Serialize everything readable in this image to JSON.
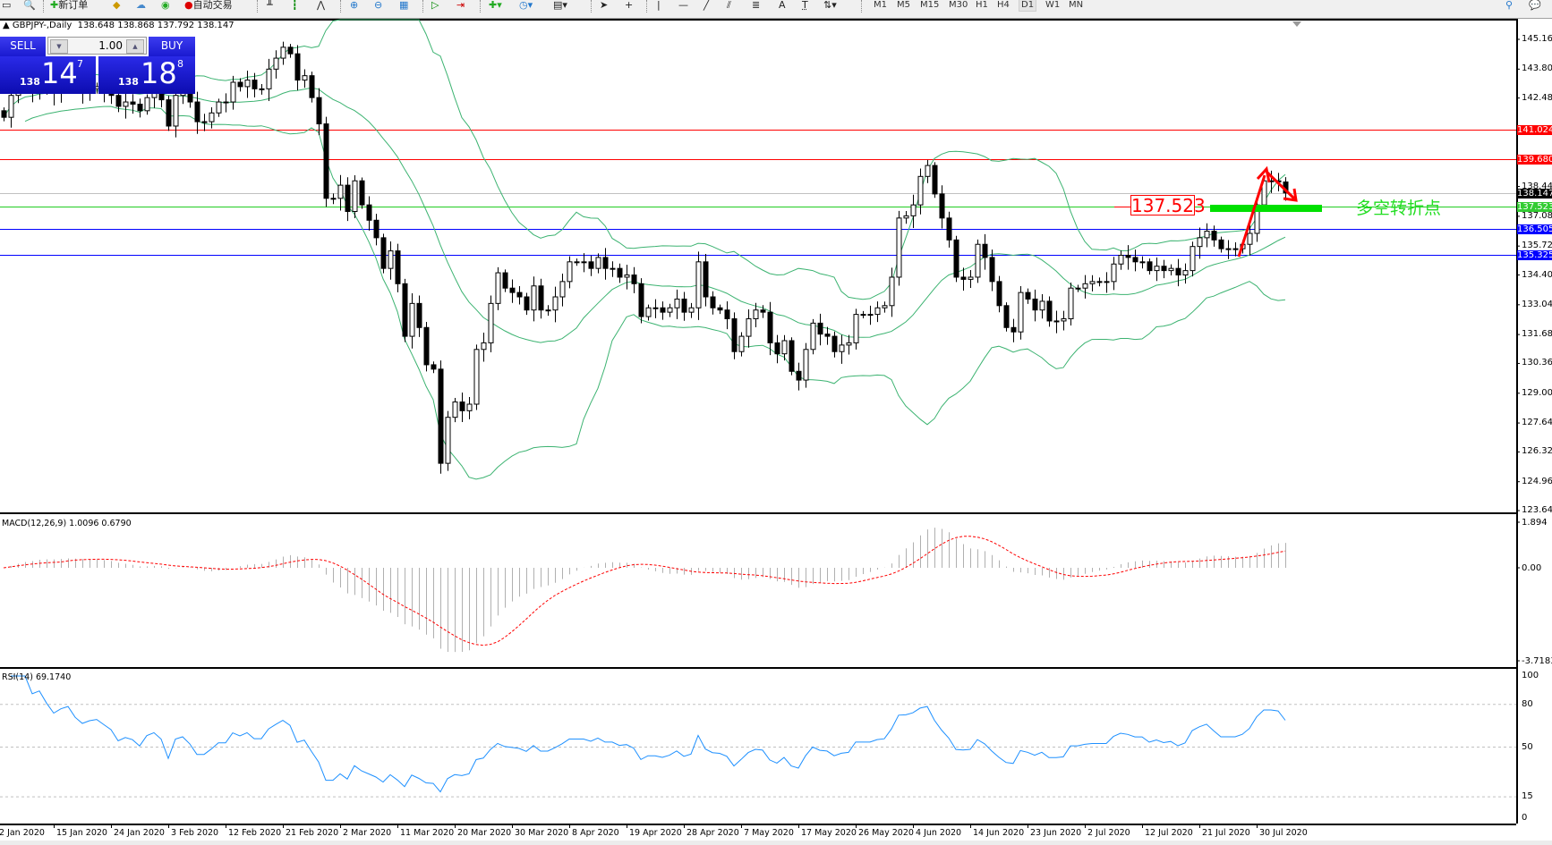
{
  "toolbar": {
    "new_order": "新订单",
    "auto_trading": "自动交易",
    "timeframes": [
      "M1",
      "M5",
      "M15",
      "M30",
      "H1",
      "H4",
      "D1",
      "W1",
      "MN"
    ],
    "active_timeframe": "D1",
    "text_tool": "A",
    "label_tool": "T"
  },
  "chart": {
    "symbol": "GBPJPY-,Daily",
    "ohlc": "138.648 138.868 137.792 138.147"
  },
  "trade_panel": {
    "sell_label": "SELL",
    "buy_label": "BUY",
    "lots": "1.00",
    "bid_prefix": "138",
    "bid_big": "14",
    "bid_small": "7",
    "ask_prefix": "138",
    "ask_big": "18",
    "ask_small": "8"
  },
  "price_axis": [
    "145.160",
    "143.800",
    "142.480",
    "138.440",
    "137.080",
    "135.720",
    "134.400",
    "133.040",
    "131.680",
    "130.360",
    "129.000",
    "127.640",
    "126.320",
    "124.960",
    "123.640"
  ],
  "levels": [
    {
      "price": "141.024",
      "color": "#ff0000"
    },
    {
      "price": "139.680",
      "color": "#ff0000"
    },
    {
      "price": "138.147",
      "color": "#000000",
      "line": "#c0c0c0"
    },
    {
      "price": "137.523",
      "color": "#33cc33",
      "line": "#22cc22"
    },
    {
      "price": "136.505",
      "color": "#0000ff"
    },
    {
      "price": "135.325",
      "color": "#0000ff"
    }
  ],
  "annotation": {
    "level_tag": "137.523",
    "note": "多空转折点",
    "arrow_color": "#ff0000",
    "zone_color": "#00e000"
  },
  "macd": {
    "label": "MACD(12,26,9) 1.0096 0.6790",
    "axis": [
      "1.894",
      "0.00",
      "-3.7183"
    ]
  },
  "rsi": {
    "label": "RSI(14) 69.1740",
    "axis": [
      "100",
      "80",
      "50",
      "15",
      "0"
    ]
  },
  "dates": [
    "2 Jan 2020",
    "15 Jan 2020",
    "24 Jan 2020",
    "3 Feb 2020",
    "12 Feb 2020",
    "21 Feb 2020",
    "2 Mar 2020",
    "11 Mar 2020",
    "20 Mar 2020",
    "30 Mar 2020",
    "8 Apr 2020",
    "19 Apr 2020",
    "28 Apr 2020",
    "7 May 2020",
    "17 May 2020",
    "26 May 2020",
    "4 Jun 2020",
    "14 Jun 2020",
    "23 Jun 2020",
    "2 Jul 2020",
    "12 Jul 2020",
    "21 Jul 2020",
    "30 Jul 2020"
  ],
  "colors": {
    "bands": "#3cb371",
    "macd_signal": "#ff0000",
    "macd_hist": "#b0b0b0",
    "rsi": "#1e90ff"
  },
  "closes": [
    141.6,
    142.6,
    142.9,
    143.0,
    142.8,
    143.1,
    142.9,
    142.7,
    143.0,
    143.2,
    142.9,
    142.7,
    142.9,
    143.0,
    142.8,
    142.6,
    142.1,
    142.3,
    142.2,
    141.9,
    142.5,
    142.7,
    142.4,
    141.2,
    142.6,
    142.8,
    142.3,
    141.4,
    141.4,
    141.8,
    142.3,
    142.3,
    143.2,
    143.0,
    143.3,
    142.9,
    142.9,
    143.8,
    144.3,
    144.8,
    144.5,
    143.3,
    143.5,
    142.5,
    141.3,
    137.9,
    137.9,
    138.5,
    137.3,
    138.7,
    137.6,
    136.9,
    136.1,
    134.7,
    135.5,
    134.0,
    131.6,
    133.1,
    132.0,
    130.3,
    130.1,
    125.8,
    127.9,
    128.6,
    128.2,
    128.5,
    131.0,
    131.3,
    133.1,
    134.5,
    133.8,
    133.6,
    133.4,
    132.8,
    133.9,
    132.8,
    132.8,
    133.4,
    134.1,
    135.0,
    135.0,
    135.0,
    134.7,
    135.2,
    134.7,
    134.7,
    134.3,
    134.4,
    134.0,
    132.5,
    132.9,
    132.9,
    132.7,
    132.9,
    133.3,
    132.7,
    132.9,
    135.0,
    133.4,
    132.9,
    132.8,
    132.4,
    130.9,
    131.6,
    132.4,
    132.8,
    132.7,
    131.3,
    130.8,
    131.4,
    130.0,
    129.6,
    131.0,
    132.2,
    131.7,
    131.6,
    130.9,
    131.2,
    131.3,
    132.6,
    132.6,
    132.6,
    132.9,
    133.0,
    134.3,
    137.0,
    137.1,
    137.6,
    138.9,
    139.4,
    138.1,
    137.0,
    136.0,
    134.3,
    134.2,
    134.3,
    135.8,
    135.2,
    134.1,
    133.0,
    132.0,
    131.8,
    133.6,
    133.3,
    132.8,
    133.2,
    132.3,
    132.3,
    132.4,
    133.8,
    133.8,
    134.0,
    134.1,
    134.1,
    134.1,
    134.9,
    135.3,
    135.2,
    135.0,
    135.0,
    134.6,
    134.8,
    134.6,
    134.7,
    134.4,
    134.6,
    135.7,
    136.1,
    136.4,
    136.0,
    135.6,
    135.6,
    135.6,
    135.8,
    136.3,
    137.6,
    138.7,
    138.7,
    138.648,
    138.147
  ],
  "last_bar": {
    "open": 138.648,
    "high": 138.868,
    "low": 137.792,
    "close": 138.147
  }
}
